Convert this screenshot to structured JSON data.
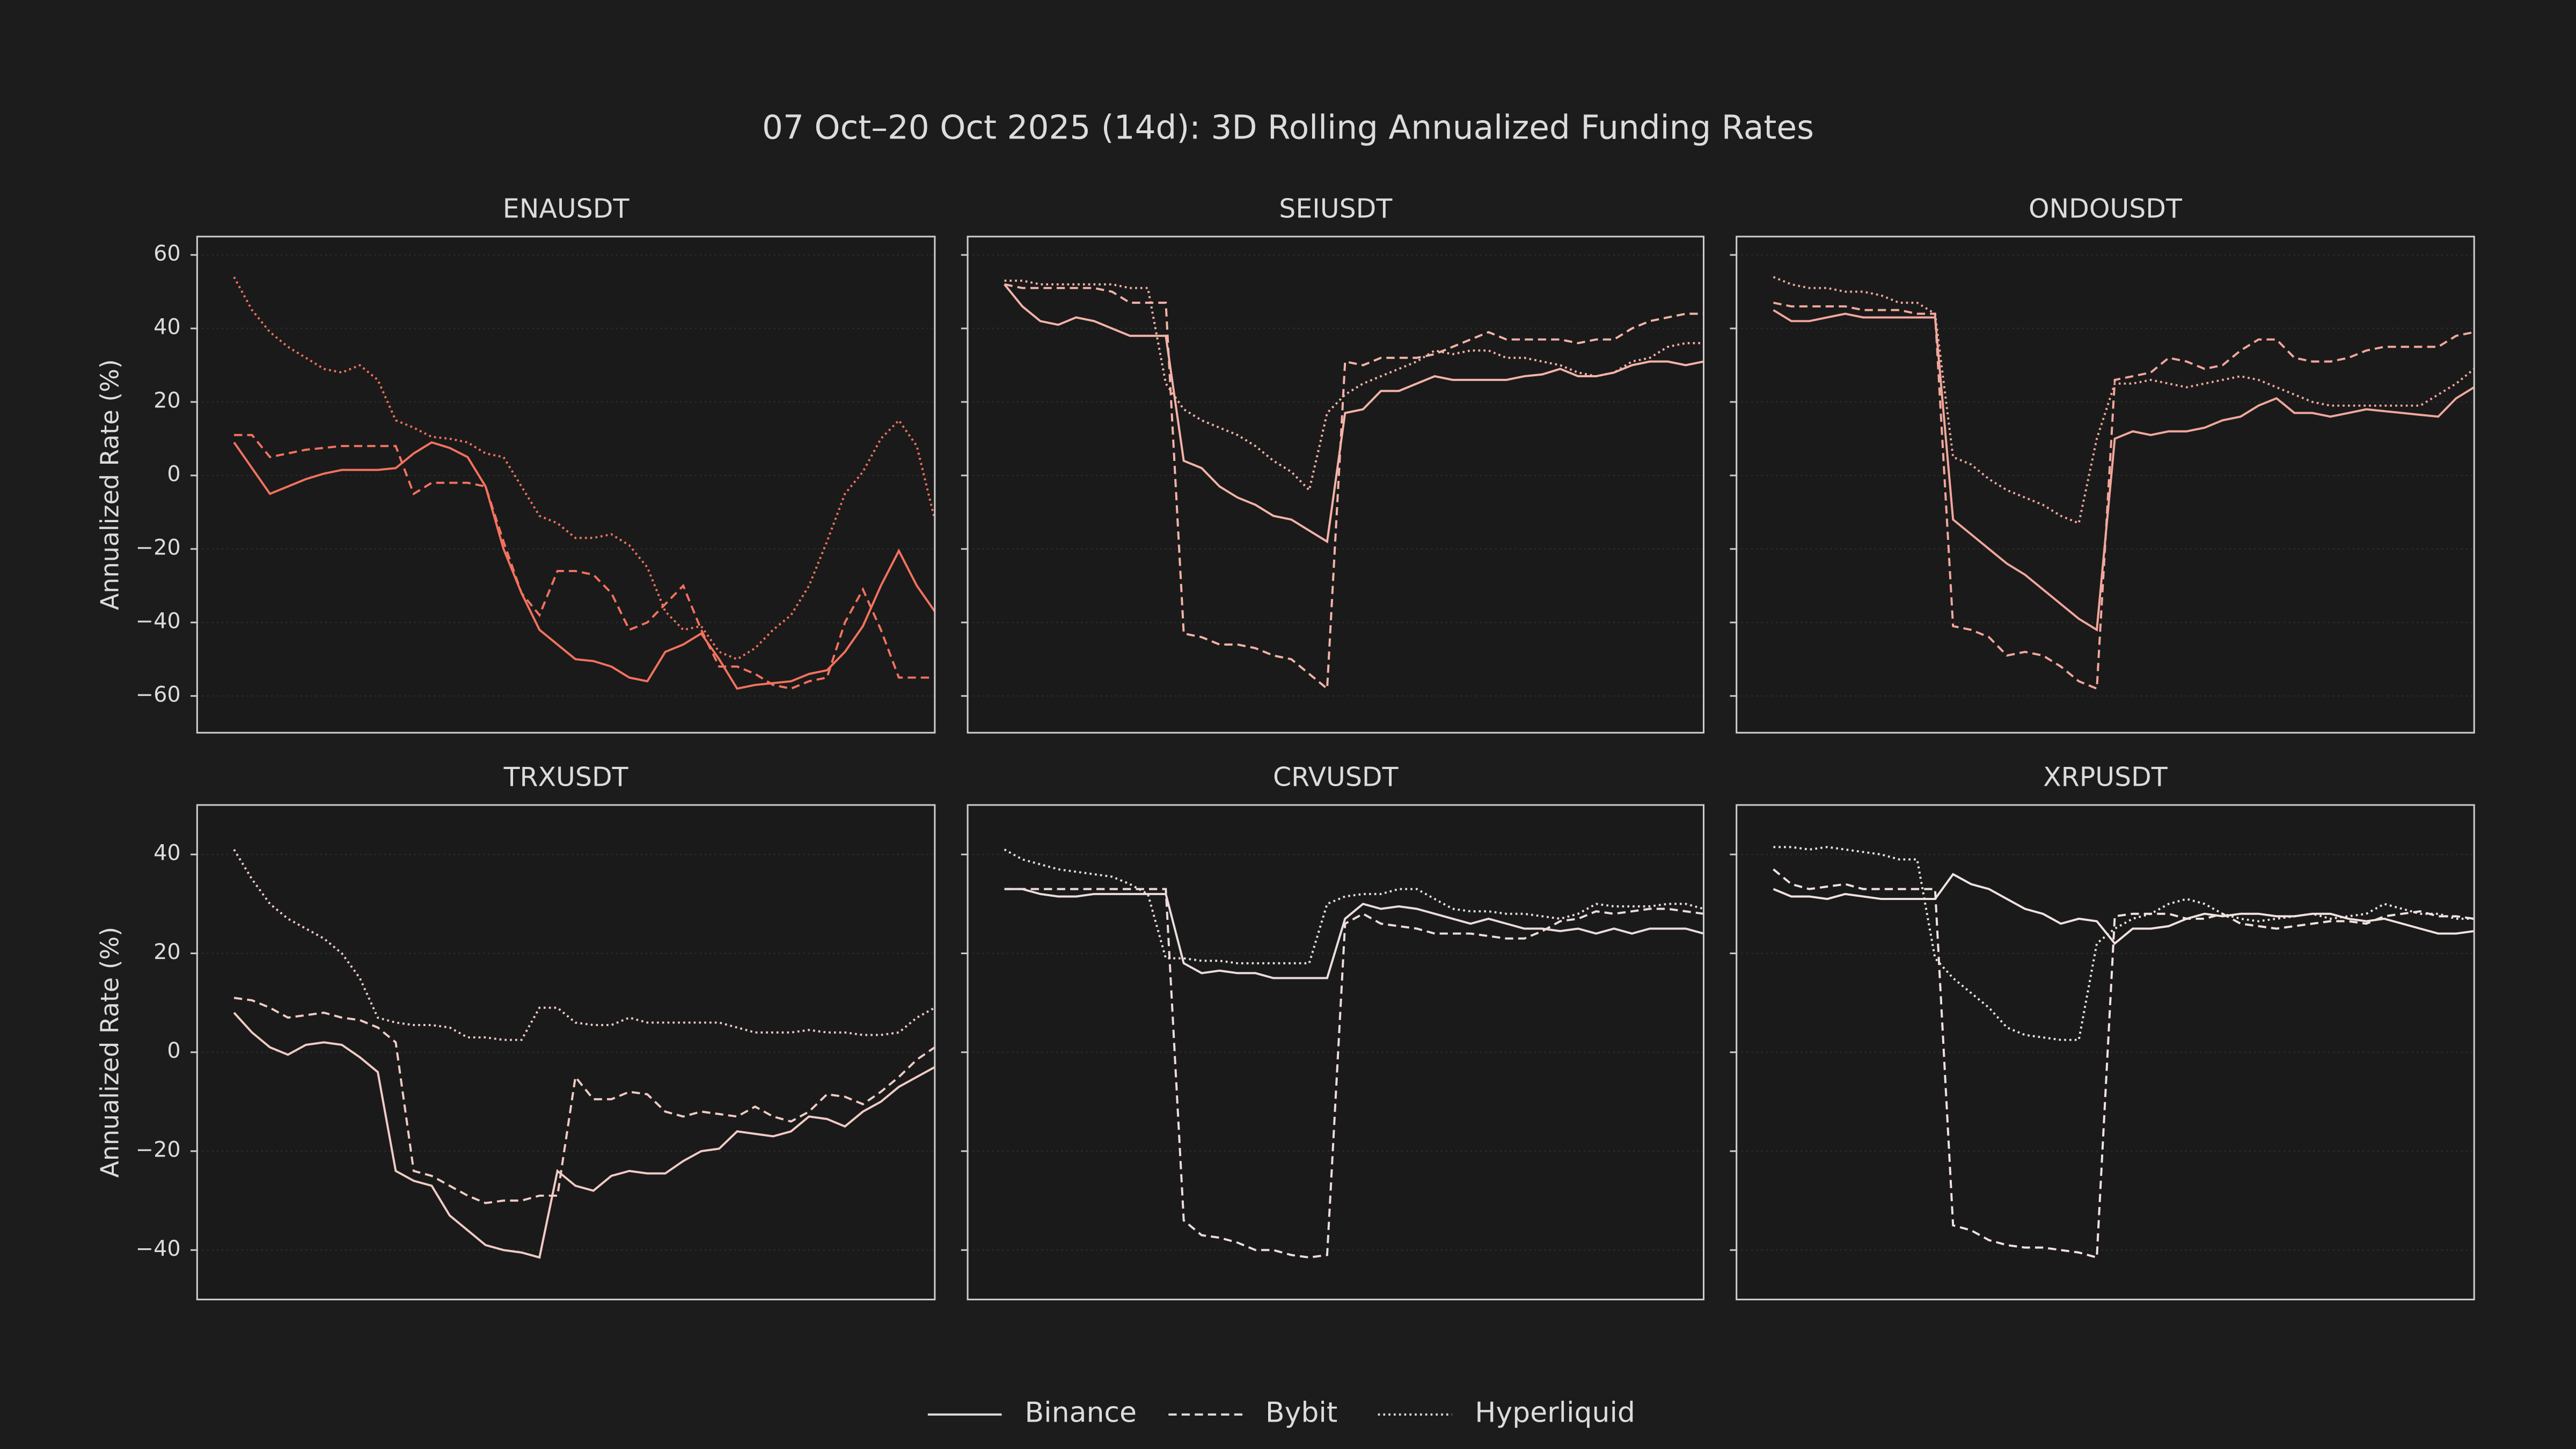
{
  "title": "07 Oct–20 Oct 2025 (14d): 3D Rolling Annualized Funding Rates",
  "legend_loc": "lower center",
  "chart_data": [
    {
      "type": "line",
      "title": "ENAUSDT",
      "ylabel": "Annualized Rate (%)",
      "ylim": [
        -70,
        65
      ],
      "yticks": [
        {
          "value": -60,
          "label": "−60"
        },
        {
          "value": -40,
          "label": "−40"
        },
        {
          "value": -20,
          "label": "−20"
        },
        0,
        20,
        40,
        60
      ],
      "grid": true,
      "series": [
        {
          "name": "Binance",
          "color": "#f4725f",
          "linestyle": "solid",
          "values": [
            9,
            2,
            -5,
            -3,
            -1,
            0.5,
            1.5,
            1.5,
            1.5,
            2,
            6,
            9,
            7.5,
            5,
            -3,
            -20,
            -32,
            -42,
            -46,
            -50,
            -50.5,
            -52,
            -55,
            -56,
            -48,
            -46,
            -43,
            -50,
            -58,
            -57,
            -56.5,
            -56,
            -54,
            -53,
            -48,
            -41,
            -30,
            -20.5,
            -30,
            -37
          ]
        },
        {
          "name": "Bybit",
          "color": "#f4725f",
          "linestyle": "dashed",
          "values": [
            11,
            11,
            5,
            6,
            7,
            7.5,
            8,
            8,
            8,
            8,
            -5,
            -2,
            -2,
            -2,
            -3,
            -18,
            -32,
            -38,
            -26,
            -26,
            -27,
            -32,
            -42,
            -40,
            -35,
            -30,
            -42,
            -52,
            -52,
            -54,
            -57,
            -58,
            -56,
            -55,
            -40,
            -31,
            -42,
            -55,
            -55,
            -55
          ]
        },
        {
          "name": "Hyperliquid",
          "color": "#f4725f",
          "linestyle": "dotted",
          "values": [
            54,
            45,
            39,
            35,
            32,
            29,
            28,
            30,
            26,
            15,
            13,
            10.5,
            10,
            9,
            6,
            5,
            -3,
            -11,
            -13,
            -17,
            -17,
            -16,
            -19,
            -25,
            -37,
            -42,
            -41,
            -48,
            -50,
            -47,
            -42,
            -38,
            -30,
            -18,
            -5,
            1,
            10,
            15,
            8,
            -12
          ]
        }
      ]
    },
    {
      "type": "line",
      "title": "SEIUSDT",
      "ylim": [
        -70,
        65
      ],
      "yticks": [
        -60,
        -40,
        -20,
        0,
        20,
        40,
        60
      ],
      "grid": true,
      "series": [
        {
          "name": "Binance",
          "color": "#f5b3a8",
          "linestyle": "solid",
          "values": [
            52,
            46,
            42,
            41,
            43,
            42,
            40,
            38,
            38,
            38,
            4,
            2,
            -3,
            -6,
            -8,
            -11,
            -12,
            -15,
            -18,
            17,
            18,
            23,
            23,
            25,
            27,
            26,
            26,
            26,
            26,
            27,
            27.5,
            29,
            27,
            27,
            28,
            30,
            31,
            31,
            30,
            31
          ]
        },
        {
          "name": "Bybit",
          "color": "#f5b3a8",
          "linestyle": "dashed",
          "values": [
            52,
            51,
            51,
            51,
            51,
            51,
            50,
            47,
            47,
            47,
            -43,
            -44,
            -46,
            -46,
            -47,
            -49,
            -50,
            -54,
            -58,
            31,
            30,
            32,
            32,
            32,
            33,
            35,
            37,
            39,
            37,
            37,
            37,
            37,
            36,
            37,
            37,
            40,
            42,
            43,
            44,
            44
          ]
        },
        {
          "name": "Hyperliquid",
          "color": "#f5b3a8",
          "linestyle": "dotted",
          "values": [
            53,
            53,
            52,
            52,
            52,
            52,
            52,
            51,
            51,
            25,
            18,
            15,
            13,
            11,
            8,
            4,
            1,
            -4,
            17,
            22,
            25,
            27,
            29,
            31,
            34,
            33,
            34,
            34,
            32,
            32,
            31,
            30,
            28,
            27,
            28,
            31,
            32,
            35,
            36,
            36
          ]
        }
      ]
    },
    {
      "type": "line",
      "title": "ONDOUSDT",
      "ylim": [
        -70,
        65
      ],
      "yticks": [
        -60,
        -40,
        -20,
        0,
        20,
        40,
        60
      ],
      "grid": true,
      "series": [
        {
          "name": "Binance",
          "color": "#f2a79c",
          "linestyle": "solid",
          "values": [
            45,
            42,
            42,
            43,
            44,
            43,
            43,
            43,
            43,
            43,
            -12,
            -16,
            -20,
            -24,
            -27,
            -31,
            -35,
            -39,
            -42,
            10,
            12,
            11,
            12,
            12,
            13,
            15,
            16,
            19,
            21,
            17,
            17,
            16,
            17,
            18,
            17.5,
            17,
            16.5,
            16,
            21,
            24
          ]
        },
        {
          "name": "Bybit",
          "color": "#f2a79c",
          "linestyle": "dashed",
          "values": [
            47,
            46,
            46,
            46,
            46,
            45,
            45,
            45,
            44,
            44,
            -41,
            -42,
            -44,
            -49,
            -48,
            -49,
            -52,
            -56,
            -58,
            26,
            27,
            28,
            32,
            31,
            29,
            30,
            34,
            37,
            37,
            32,
            31,
            31,
            32,
            34,
            35,
            35,
            35,
            35,
            38,
            39
          ]
        },
        {
          "name": "Hyperliquid",
          "color": "#f2a79c",
          "linestyle": "dotted",
          "values": [
            54,
            52,
            51,
            51,
            50,
            50,
            49,
            47,
            47,
            44,
            5,
            3,
            -1,
            -4,
            -6,
            -8,
            -11,
            -13,
            10,
            25,
            25,
            26,
            25,
            24,
            25,
            26,
            27,
            26,
            24,
            22,
            20,
            19,
            19,
            19,
            19,
            19,
            19,
            22,
            25,
            29
          ]
        }
      ]
    },
    {
      "type": "line",
      "title": "TRXUSDT",
      "ylabel": "Annualized Rate (%)",
      "ylim": [
        -50,
        50
      ],
      "yticks": [
        {
          "value": -40,
          "label": "−40"
        },
        {
          "value": -20,
          "label": "−20"
        },
        0,
        20,
        40
      ],
      "grid": true,
      "series": [
        {
          "name": "Binance",
          "color": "#f1cbc5",
          "linestyle": "solid",
          "values": [
            8,
            4,
            1,
            -0.5,
            1.5,
            2,
            1.5,
            -1,
            -4,
            -24,
            -26,
            -27,
            -33,
            -36,
            -39,
            -40,
            -40.5,
            -41.5,
            -24,
            -27,
            -28,
            -25,
            -24,
            -24.5,
            -24.5,
            -22,
            -20,
            -19.5,
            -16,
            -16.5,
            -17,
            -16,
            -13,
            -13.5,
            -15,
            -12,
            -10,
            -7,
            -5,
            -3
          ]
        },
        {
          "name": "Bybit",
          "color": "#f1cbc5",
          "linestyle": "dashed",
          "values": [
            11,
            10.5,
            9,
            7,
            7.5,
            8,
            7,
            6.5,
            5,
            2,
            -24,
            -25,
            -27,
            -29,
            -30.5,
            -30,
            -30,
            -29,
            -29,
            -5,
            -9.5,
            -9.5,
            -8,
            -8.5,
            -12,
            -13,
            -12,
            -12.5,
            -13,
            -11,
            -13,
            -14,
            -12,
            -8.5,
            -9,
            -10.5,
            -8,
            -5,
            -1.5,
            1
          ]
        },
        {
          "name": "Hyperliquid",
          "color": "#f1cbc5",
          "linestyle": "dotted",
          "values": [
            41,
            35,
            30,
            27,
            25,
            23,
            20,
            15,
            7,
            6,
            5.5,
            5.5,
            5,
            3,
            3,
            2.5,
            2.5,
            9,
            9,
            6,
            5.5,
            5.5,
            7,
            6,
            6,
            6,
            6,
            6,
            5,
            4,
            4,
            4,
            4.5,
            4,
            4,
            3.5,
            3.5,
            4,
            7,
            9
          ]
        }
      ]
    },
    {
      "type": "line",
      "title": "CRVUSDT",
      "ylim": [
        -50,
        50
      ],
      "yticks": [
        -40,
        -20,
        0,
        20,
        40
      ],
      "grid": true,
      "series": [
        {
          "name": "Binance",
          "color": "#ecdcdc",
          "linestyle": "solid",
          "values": [
            33,
            33,
            32,
            31.5,
            31.5,
            32,
            32,
            32,
            32,
            32,
            18,
            16,
            16.5,
            16,
            16,
            15,
            15,
            15,
            15,
            27,
            30,
            29,
            29.5,
            29,
            28,
            27,
            26,
            27,
            26,
            25,
            25,
            24.5,
            25,
            24,
            25,
            24,
            25,
            25,
            25,
            24
          ]
        },
        {
          "name": "Bybit",
          "color": "#ecdcdc",
          "linestyle": "dashed",
          "values": [
            33,
            33,
            33,
            33,
            33,
            33,
            33,
            33,
            33,
            33,
            -34,
            -37,
            -37.5,
            -38.5,
            -40,
            -40,
            -41,
            -41.5,
            -41,
            26,
            28,
            26,
            25.5,
            25,
            24,
            24,
            24,
            23.5,
            23,
            23,
            24.5,
            26.5,
            27,
            28.5,
            28,
            28.5,
            29,
            29,
            28.5,
            28
          ]
        },
        {
          "name": "Hyperliquid",
          "color": "#ecdcdc",
          "linestyle": "dotted",
          "values": [
            41,
            39,
            38,
            37,
            36.5,
            36,
            35.5,
            34,
            32,
            19,
            19,
            18.5,
            18.5,
            18,
            18,
            18,
            18,
            18,
            30,
            31.5,
            32,
            32,
            33,
            33,
            31,
            29,
            28.5,
            28.5,
            28,
            28,
            27.5,
            27,
            28,
            30,
            29.5,
            29.5,
            29.5,
            30,
            30,
            29
          ]
        }
      ]
    },
    {
      "type": "line",
      "title": "XRPUSDT",
      "ylim": [
        -50,
        50
      ],
      "yticks": [
        -40,
        -20,
        0,
        20,
        40
      ],
      "grid": true,
      "series": [
        {
          "name": "Binance",
          "color": "#f0e2e0",
          "linestyle": "solid",
          "values": [
            33,
            31.5,
            31.5,
            31,
            32,
            31.5,
            31,
            31,
            31,
            31,
            36,
            34,
            33,
            31,
            29,
            28,
            26,
            27,
            26.5,
            22,
            25,
            25,
            25.5,
            27,
            28,
            27.5,
            28,
            28,
            27.5,
            27.5,
            28,
            28,
            27,
            26.5,
            27,
            26,
            25,
            24,
            24,
            24.5
          ]
        },
        {
          "name": "Bybit",
          "color": "#f0e2e0",
          "linestyle": "dashed",
          "values": [
            37,
            34,
            33,
            33.5,
            34,
            33,
            33,
            33,
            33,
            33,
            -35,
            -36,
            -38,
            -39,
            -39.5,
            -39.5,
            -40,
            -40.5,
            -41.5,
            27.5,
            28,
            28,
            28,
            27,
            27,
            28,
            26,
            25.5,
            25,
            25.5,
            26,
            26.5,
            26.5,
            26,
            27.5,
            28,
            28.5,
            27.5,
            27.5,
            27
          ]
        },
        {
          "name": "Hyperliquid",
          "color": "#f0e2e0",
          "linestyle": "dotted",
          "values": [
            41.5,
            41.5,
            41,
            41.5,
            41,
            40.5,
            40,
            39,
            39,
            19,
            15,
            12,
            9,
            5,
            3.5,
            3,
            2.5,
            2.5,
            22,
            25,
            27,
            28,
            30,
            31,
            30,
            28,
            27,
            26.5,
            27,
            27.5,
            28,
            27,
            27.5,
            28,
            30,
            29,
            28,
            28,
            27,
            27
          ]
        }
      ]
    }
  ]
}
